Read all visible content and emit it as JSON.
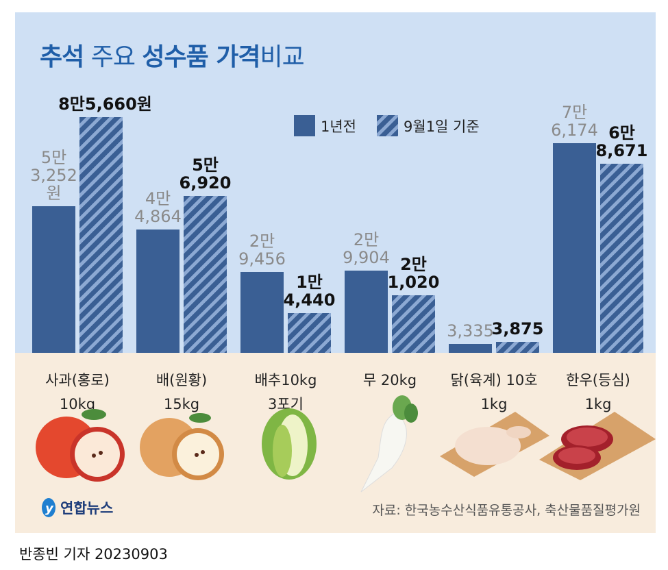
{
  "title": {
    "part1": "추석",
    "part2": " 주요 ",
    "part3": "성수품 가격",
    "part4": "비교"
  },
  "legend": [
    {
      "label": "1년전",
      "style": "solid"
    },
    {
      "label": "9월1일 기준",
      "style": "hatched"
    }
  ],
  "colors": {
    "bar": "#3a5f94",
    "hatch_light": "#8ca9d3",
    "title": "#1f5ea8",
    "sky": "#cfe0f4",
    "ground": "#f8ecdd"
  },
  "chart_data": {
    "type": "bar",
    "categories": [
      "사과(홍로) 10kg",
      "배(원황) 15kg",
      "배추10kg 3포기",
      "무 20kg",
      "닭(육계) 10호 1kg",
      "한우(등심) 1kg"
    ],
    "series": [
      {
        "name": "1년전",
        "values": [
          53252,
          44864,
          29456,
          29904,
          3335,
          76174
        ]
      },
      {
        "name": "9월1일 기준",
        "values": [
          85660,
          56920,
          14440,
          21020,
          3875,
          68671
        ]
      }
    ],
    "unit": "원"
  },
  "groups": [
    {
      "cat": [
        "사과(홍로)",
        "10kg"
      ],
      "prev_label": [
        "5만",
        "3,252",
        "원"
      ],
      "cur_label": [
        "8만5,660원"
      ]
    },
    {
      "cat": [
        "배(원황)",
        "15kg"
      ],
      "prev_label": [
        "4만",
        "4,864"
      ],
      "cur_label": [
        "5만",
        "6,920"
      ]
    },
    {
      "cat": [
        "배추10kg",
        "3포기"
      ],
      "prev_label": [
        "2만",
        "9,456"
      ],
      "cur_label": [
        "1만",
        "4,440"
      ]
    },
    {
      "cat": [
        "무 20kg"
      ],
      "prev_label": [
        "2만",
        "9,904"
      ],
      "cur_label": [
        "2만",
        "1,020"
      ]
    },
    {
      "cat": [
        "닭(육계) 10호",
        "1kg"
      ],
      "prev_label": [
        "3,335"
      ],
      "cur_label": [
        "3,875"
      ]
    },
    {
      "cat": [
        "한우(등심)",
        "1kg"
      ],
      "prev_label": [
        "7만",
        "6,174"
      ],
      "cur_label": [
        "6만",
        "8,671"
      ]
    }
  ],
  "logo": "연합뉴스",
  "source": "자료: 한국농수산식품유통공사, 축산물품질평가원",
  "credit": "반종빈 기자  20230903"
}
